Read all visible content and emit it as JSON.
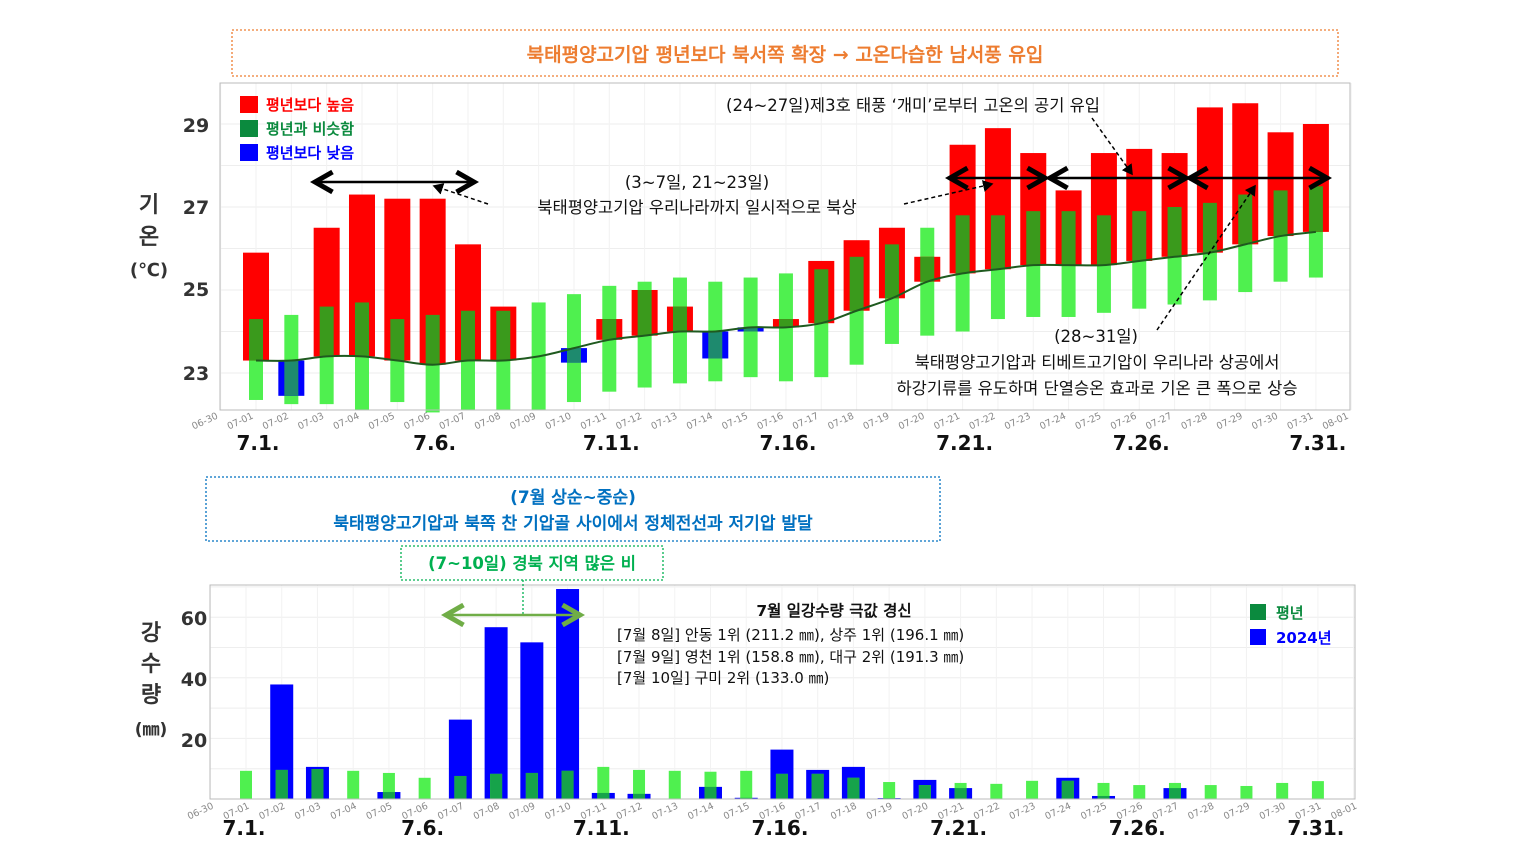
{
  "header": {
    "title": "북태평양고기압 평년보다 북서쪽 확장 → 고온다습한 남서풍 유입"
  },
  "colors": {
    "above": "#ff0000",
    "normal_range": "#4ff04f",
    "normal_overlap": "#3a9a1c",
    "below": "#0000ff",
    "normal_line": "#1f5a1f",
    "legend_green": "#0b8a3e",
    "title_orange": "#ed7d31",
    "note_blue": "#0070c0",
    "note_green": "#00b050",
    "arrow_green": "#70ad47"
  },
  "temp_annotations": {
    "typhoon": "(24~27일)제3호 태풍 ‘개미’로부터 고온의 공기 유입",
    "expand_period": "(3~7일, 21~23일)",
    "expand_text": "북태평양고기압 우리나라까지 일시적으로 북상",
    "late_period": "(28~31일)",
    "late_line1": "북태평양고기압과 티베트고기압이 우리나라 상공에서",
    "late_line2": "하강기류를 유도하며 단열승온 효과로 기온 큰 폭으로 상승"
  },
  "rain_annotations": {
    "box_line1": "(7월 상순~중순)",
    "box_line2": "북태평양고기압과 북쪽 찬 기압골 사이에서 정체전선과 저기압 발달",
    "local_box": "(7~10일) 경북 지역 많은 비",
    "record_title": "7월 일강수량 극값 경신",
    "record_lines": [
      "[7월 8일] 안동 1위 (211.2 ㎜), 상주 1위 (196.1 ㎜)",
      "[7월 9일] 영천 1위 (158.8 ㎜), 대구 2위 (191.3 ㎜)",
      "[7월 10일] 구미 2위 (133.0 ㎜)"
    ]
  },
  "chart_data": [
    {
      "type": "bar",
      "title": "",
      "ylabel_lines": [
        "기",
        "온",
        "(℃)"
      ],
      "ylim": [
        22.1,
        29.9
      ],
      "yticks": [
        "23",
        "25",
        "27",
        "29"
      ],
      "grid": true,
      "legend_position": "top-left",
      "legend": [
        {
          "label": "평년보다 높음",
          "color": "#ff0000"
        },
        {
          "label": "평년과 비슷함",
          "color": "#0b8a3e"
        },
        {
          "label": "평년보다 낮음",
          "color": "#0000ff"
        }
      ],
      "x_ticks": [
        "06-30",
        "07-01",
        "07-02",
        "07-03",
        "07-04",
        "07-05",
        "07-06",
        "07-07",
        "07-08",
        "07-09",
        "07-10",
        "07-11",
        "07-12",
        "07-13",
        "07-14",
        "07-15",
        "07-16",
        "07-17",
        "07-18",
        "07-19",
        "07-20",
        "07-21",
        "07-22",
        "07-23",
        "07-24",
        "07-25",
        "07-26",
        "07-27",
        "07-28",
        "07-29",
        "07-30",
        "07-31",
        "08-01"
      ],
      "major_labels": [
        "7.1.",
        "7.6.",
        "7.11.",
        "7.16.",
        "7.21.",
        "7.26.",
        "7.31."
      ],
      "days": [
        1,
        2,
        3,
        4,
        5,
        6,
        7,
        8,
        9,
        10,
        11,
        12,
        13,
        14,
        15,
        16,
        17,
        18,
        19,
        20,
        21,
        22,
        23,
        24,
        25,
        26,
        27,
        28,
        29,
        30,
        31
      ],
      "actual": [
        25.9,
        22.45,
        26.5,
        27.3,
        27.2,
        27.2,
        26.1,
        24.6,
        23.4,
        23.25,
        24.3,
        25.0,
        24.6,
        23.35,
        24.0,
        24.3,
        25.7,
        26.2,
        26.5,
        25.8,
        28.5,
        28.9,
        28.3,
        27.4,
        28.3,
        28.4,
        28.3,
        29.4,
        29.5,
        28.8,
        29.0
      ],
      "normal": [
        23.3,
        23.3,
        23.4,
        23.4,
        23.3,
        23.2,
        23.3,
        23.3,
        23.4,
        23.6,
        23.8,
        23.9,
        24.0,
        24.0,
        24.1,
        24.1,
        24.2,
        24.5,
        24.8,
        25.2,
        25.4,
        25.5,
        25.6,
        25.6,
        25.6,
        25.7,
        25.8,
        25.9,
        26.1,
        26.3,
        26.4
      ],
      "normal_low": [
        22.35,
        22.25,
        22.25,
        22.1,
        22.3,
        22.05,
        22.1,
        22.1,
        22.1,
        22.3,
        22.55,
        22.65,
        22.75,
        22.8,
        22.9,
        22.8,
        22.9,
        23.2,
        23.7,
        23.9,
        24.0,
        24.3,
        24.35,
        24.35,
        24.45,
        24.55,
        24.65,
        24.75,
        24.95,
        25.2,
        25.3
      ],
      "normal_high": [
        24.3,
        24.4,
        24.6,
        24.7,
        24.3,
        24.4,
        24.5,
        24.5,
        24.7,
        24.9,
        25.1,
        25.2,
        25.3,
        25.2,
        25.3,
        25.4,
        25.5,
        25.8,
        26.1,
        26.5,
        26.8,
        26.8,
        26.9,
        26.9,
        26.8,
        26.9,
        27.0,
        27.1,
        27.3,
        27.4,
        27.5
      ]
    },
    {
      "type": "bar",
      "title": "",
      "ylabel_lines": [
        "강",
        "수",
        "량",
        "(㎜)"
      ],
      "ylim": [
        0,
        71
      ],
      "yticks": [
        "20",
        "40",
        "60"
      ],
      "grid": true,
      "legend_position": "top-right",
      "x_ticks": [
        "06-30",
        "07-01",
        "07-02",
        "07-03",
        "07-04",
        "07-05",
        "07-06",
        "07-07",
        "07-08",
        "07-09",
        "07-10",
        "07-11",
        "07-12",
        "07-13",
        "07-14",
        "07-15",
        "07-16",
        "07-17",
        "07-18",
        "07-19",
        "07-20",
        "07-21",
        "07-22",
        "07-23",
        "07-24",
        "07-25",
        "07-26",
        "07-27",
        "07-28",
        "07-29",
        "07-30",
        "07-31",
        "08-01"
      ],
      "major_labels": [
        "7.1.",
        "7.6.",
        "7.11.",
        "7.16.",
        "7.21.",
        "7.26.",
        "7.31."
      ],
      "days": [
        1,
        2,
        3,
        4,
        5,
        6,
        7,
        8,
        9,
        10,
        11,
        12,
        13,
        14,
        15,
        16,
        17,
        18,
        19,
        20,
        21,
        22,
        23,
        24,
        25,
        26,
        27,
        28,
        29,
        30,
        31
      ],
      "series": [
        {
          "name": "평년",
          "color": "#0b8a3e",
          "values": [
            9.3,
            9.6,
            9.9,
            9.3,
            8.6,
            7.0,
            7.6,
            8.3,
            8.6,
            9.3,
            10.6,
            9.6,
            9.3,
            9.0,
            9.3,
            8.3,
            8.3,
            7.0,
            5.6,
            4.6,
            5.3,
            5.0,
            6.0,
            6.0,
            5.3,
            4.6,
            5.3,
            4.6,
            4.3,
            5.3,
            5.9
          ]
        },
        {
          "name": "2024년",
          "color": "#0000ff",
          "values": [
            0,
            37.8,
            10.6,
            0,
            2.3,
            0,
            26.2,
            56.7,
            51.7,
            69.3,
            2.0,
            1.7,
            0,
            4.0,
            0.4,
            16.3,
            9.6,
            10.6,
            0.3,
            6.3,
            3.6,
            0,
            0,
            7.0,
            1.0,
            0,
            3.6,
            0,
            0,
            0,
            0
          ]
        }
      ]
    }
  ]
}
